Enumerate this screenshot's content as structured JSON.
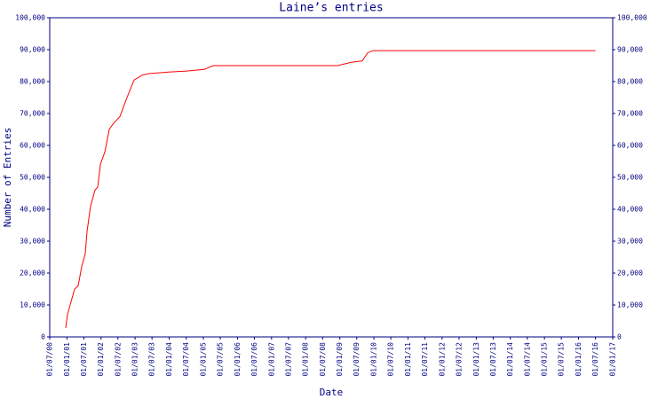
{
  "chart_data": {
    "type": "line",
    "title": "Laine’s entries",
    "xlabel": "Date",
    "ylabel": "Number of Entries",
    "x": [
      "2000-12-19",
      "2001-01-07",
      "2001-02-14",
      "2001-03-24",
      "2001-05-01",
      "2001-06-08",
      "2001-07-16",
      "2001-08-04",
      "2001-09-11",
      "2001-10-29",
      "2001-11-27",
      "2001-12-25",
      "2002-02-11",
      "2002-03-30",
      "2002-05-17",
      "2002-07-22",
      "2002-10-06",
      "2002-12-21",
      "2003-03-17",
      "2003-06-01",
      "2003-12-26",
      "2004-07-05",
      "2005-01-10",
      "2005-04-16",
      "2006-11-06",
      "2008-12-06",
      "2009-04-28",
      "2009-08-30",
      "2009-10-26",
      "2009-12-22",
      "2016-07-01"
    ],
    "series": [
      {
        "name": "Laine",
        "color": "#ff0000",
        "values": [
          2800,
          7000,
          11000,
          15000,
          16000,
          22000,
          26000,
          33000,
          41000,
          46000,
          47000,
          54000,
          58000,
          65000,
          67000,
          69000,
          75000,
          80500,
          82000,
          82500,
          83000,
          83300,
          83800,
          85000,
          85000,
          85000,
          86000,
          86500,
          89000,
          89700,
          89700
        ]
      }
    ],
    "xlim": [
      "2000-07-01",
      "2017-01-01"
    ],
    "xticks": [
      {
        "value": "2000-07-01",
        "label": "01/07/00"
      },
      {
        "value": "2001-01-01",
        "label": "01/01/01"
      },
      {
        "value": "2001-07-01",
        "label": "01/07/01"
      },
      {
        "value": "2002-01-01",
        "label": "01/01/02"
      },
      {
        "value": "2002-07-01",
        "label": "01/07/02"
      },
      {
        "value": "2003-01-01",
        "label": "01/01/03"
      },
      {
        "value": "2003-07-01",
        "label": "01/07/03"
      },
      {
        "value": "2004-01-01",
        "label": "01/01/04"
      },
      {
        "value": "2004-07-01",
        "label": "01/07/04"
      },
      {
        "value": "2005-01-01",
        "label": "01/01/05"
      },
      {
        "value": "2005-07-01",
        "label": "01/07/05"
      },
      {
        "value": "2006-01-01",
        "label": "01/01/06"
      },
      {
        "value": "2006-07-01",
        "label": "01/07/06"
      },
      {
        "value": "2007-01-01",
        "label": "01/01/07"
      },
      {
        "value": "2007-07-01",
        "label": "01/07/07"
      },
      {
        "value": "2008-01-01",
        "label": "01/01/08"
      },
      {
        "value": "2008-07-01",
        "label": "01/07/08"
      },
      {
        "value": "2009-01-01",
        "label": "01/01/09"
      },
      {
        "value": "2009-07-01",
        "label": "01/07/09"
      },
      {
        "value": "2010-01-01",
        "label": "01/01/10"
      },
      {
        "value": "2010-07-01",
        "label": "01/07/10"
      },
      {
        "value": "2011-01-01",
        "label": "01/01/11"
      },
      {
        "value": "2011-07-01",
        "label": "01/07/11"
      },
      {
        "value": "2012-01-01",
        "label": "01/01/12"
      },
      {
        "value": "2012-07-01",
        "label": "01/07/12"
      },
      {
        "value": "2013-01-01",
        "label": "01/01/13"
      },
      {
        "value": "2013-07-01",
        "label": "01/07/13"
      },
      {
        "value": "2014-01-01",
        "label": "01/01/14"
      },
      {
        "value": "2014-07-01",
        "label": "01/07/14"
      },
      {
        "value": "2015-01-01",
        "label": "01/01/15"
      },
      {
        "value": "2015-07-01",
        "label": "01/07/15"
      },
      {
        "value": "2016-01-01",
        "label": "01/01/16"
      },
      {
        "value": "2016-07-01",
        "label": "01/07/16"
      },
      {
        "value": "2017-01-01",
        "label": "01/01/17"
      }
    ],
    "ylim": [
      0,
      100000
    ],
    "yticks": [
      0,
      {
        "value": 10000,
        "label": "10,000"
      },
      {
        "value": 20000,
        "label": "20,000"
      },
      {
        "value": 30000,
        "label": "30,000"
      },
      {
        "value": 40000,
        "label": "40,000"
      },
      {
        "value": 50000,
        "label": "50,000"
      },
      {
        "value": 60000,
        "label": "60,000"
      },
      {
        "value": 70000,
        "label": "70,000"
      },
      {
        "value": 80000,
        "label": "80,000"
      },
      {
        "value": 90000,
        "label": "90,000"
      },
      {
        "value": 100000,
        "label": "100,000"
      }
    ],
    "y2lim": [
      0,
      100000
    ],
    "y2ticks": [
      0,
      {
        "value": 10000,
        "label": "10,000"
      },
      {
        "value": 20000,
        "label": "20,000"
      },
      {
        "value": 30000,
        "label": "30,000"
      },
      {
        "value": 40000,
        "label": "40,000"
      },
      {
        "value": 50000,
        "label": "50,000"
      },
      {
        "value": 60000,
        "label": "60,000"
      },
      {
        "value": 70000,
        "label": "70,000"
      },
      {
        "value": 80000,
        "label": "80,000"
      },
      {
        "value": 90000,
        "label": "90,000"
      },
      {
        "value": 100000,
        "label": "100,000"
      }
    ],
    "grid": false
  }
}
